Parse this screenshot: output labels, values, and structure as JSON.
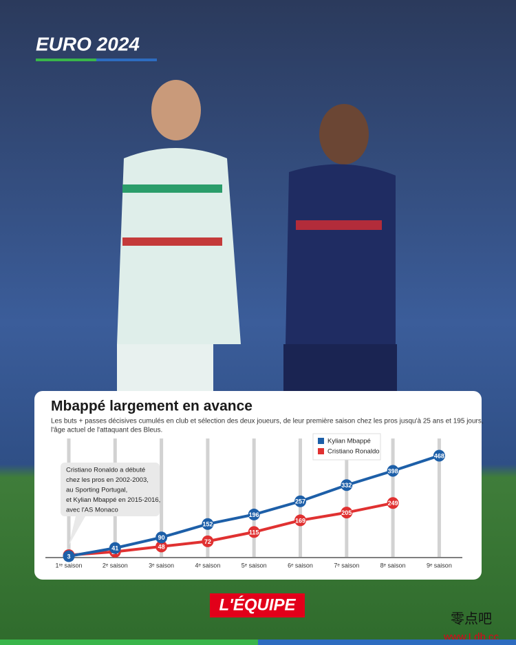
{
  "header": {
    "badge": "EURO 2024"
  },
  "chart_data": {
    "type": "line",
    "title": "Mbappé largement en avance",
    "subtitle": [
      "Les buts + passes décisives cumulés en club et sélection des deux joueurs, de leur première saison chez les pros jusqu'à 25 ans et 195 jours,",
      "l'âge actuel de l'attaquant des Bleus."
    ],
    "annotation": [
      "Cristiano Ronaldo a débuté",
      "chez les pros en 2002-2003,",
      "au Sporting Portugal,",
      "et Kylian Mbappé en 2015-2016,",
      "avec l'AS Monaco"
    ],
    "categories": [
      "1ʳᵉ saison",
      "2ᵉ saison",
      "3ᵉ saison",
      "4ᵉ saison",
      "5ᵉ saison",
      "6ᵉ saison",
      "7ᵉ saison",
      "8ᵉ saison",
      "9ᵉ saison"
    ],
    "series": [
      {
        "name": "Kylian Mbappé",
        "color": "#1d5fa8",
        "values": [
          3,
          41,
          90,
          152,
          196,
          257,
          332,
          398,
          468
        ]
      },
      {
        "name": "Cristiano Ronaldo",
        "color": "#e03131",
        "values": [
          8,
          24,
          48,
          72,
          115,
          169,
          205,
          249,
          null
        ]
      }
    ]
  },
  "footer": {
    "logo": "L'ÉQUIPE",
    "watermark": "零点吧",
    "watermark_url": "www.Ldb.cc"
  }
}
